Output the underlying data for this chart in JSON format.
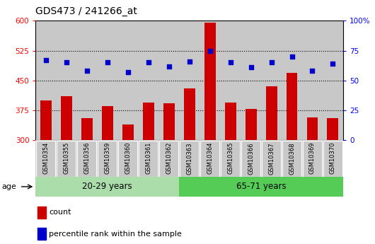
{
  "title": "GDS473 / 241266_at",
  "samples": [
    "GSM10354",
    "GSM10355",
    "GSM10356",
    "GSM10359",
    "GSM10360",
    "GSM10361",
    "GSM10362",
    "GSM10363",
    "GSM10364",
    "GSM10365",
    "GSM10366",
    "GSM10367",
    "GSM10368",
    "GSM10369",
    "GSM10370"
  ],
  "counts": [
    400,
    410,
    355,
    385,
    340,
    395,
    393,
    430,
    596,
    395,
    378,
    435,
    470,
    358,
    355
  ],
  "percentile": [
    67,
    65,
    58,
    65,
    57,
    65,
    62,
    66,
    75,
    65,
    61,
    65,
    70,
    58,
    64
  ],
  "group1_label": "20-29 years",
  "group2_label": "65-71 years",
  "group1_count": 7,
  "group2_count": 8,
  "ylim_left": [
    300,
    600
  ],
  "ylim_right": [
    0,
    100
  ],
  "yticks_left": [
    300,
    375,
    450,
    525,
    600
  ],
  "yticks_right": [
    0,
    25,
    50,
    75,
    100
  ],
  "bar_color": "#cc0000",
  "dot_color": "#0000cc",
  "bar_bottom": 300,
  "group1_bg": "#aaddaa",
  "group2_bg": "#55cc55",
  "tick_bg": "#c8c8c8",
  "legend_count_label": "count",
  "legend_pct_label": "percentile rank within the sample",
  "grid_lines": [
    375,
    450,
    525
  ]
}
